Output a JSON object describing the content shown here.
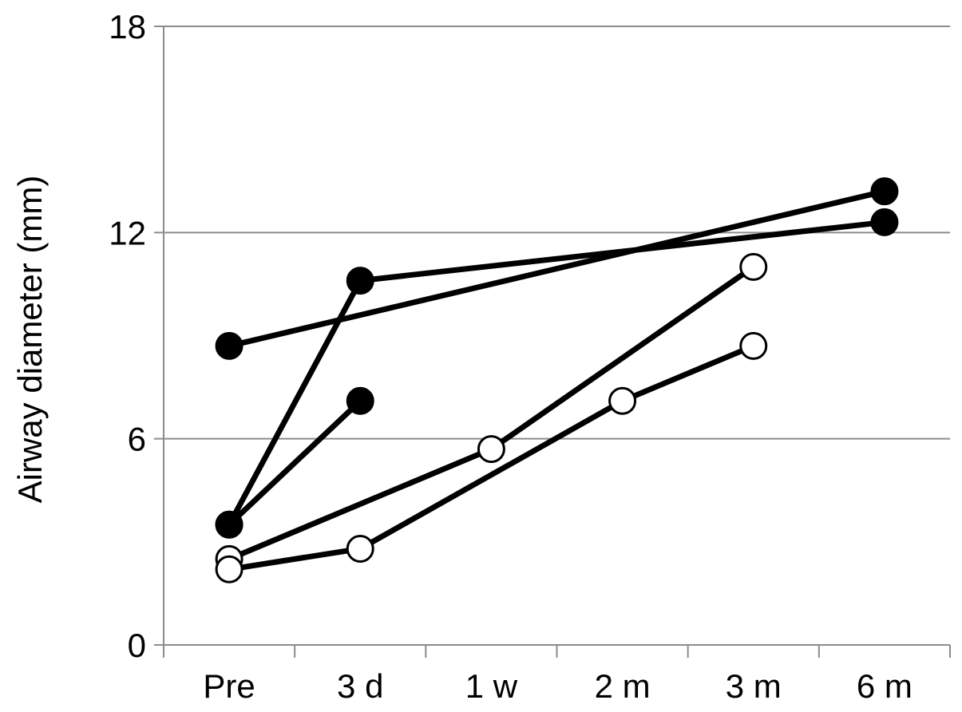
{
  "chart_data": {
    "type": "line",
    "title": "",
    "xlabel": "",
    "ylabel": "Airway diameter (mm)",
    "categories": [
      "Pre",
      "3 d",
      "1 w",
      "2 m",
      "3 m",
      "6 m"
    ],
    "ylim": [
      0,
      18
    ],
    "yticks": [
      "0",
      "6",
      "12",
      "18"
    ],
    "grid": true,
    "colors": {
      "line": "#000000",
      "filled": "#000000",
      "open": "#ffffff",
      "grid": "#8c8c8c"
    },
    "series": [
      {
        "marker": "filled",
        "points": [
          [
            0,
            8.7
          ],
          [
            5,
            13.2
          ]
        ]
      },
      {
        "marker": "filled",
        "points": [
          [
            0,
            3.5
          ],
          [
            1,
            10.6
          ],
          [
            5,
            12.3
          ]
        ]
      },
      {
        "marker": "filled",
        "points": [
          [
            0,
            3.5
          ],
          [
            1,
            7.1
          ]
        ]
      },
      {
        "marker": "open",
        "points": [
          [
            0,
            2.5
          ],
          [
            2,
            5.7
          ],
          [
            4,
            11.0
          ]
        ]
      },
      {
        "marker": "open",
        "points": [
          [
            0,
            2.2
          ],
          [
            1,
            2.8
          ],
          [
            3,
            7.1
          ],
          [
            4,
            8.7
          ]
        ]
      }
    ]
  }
}
